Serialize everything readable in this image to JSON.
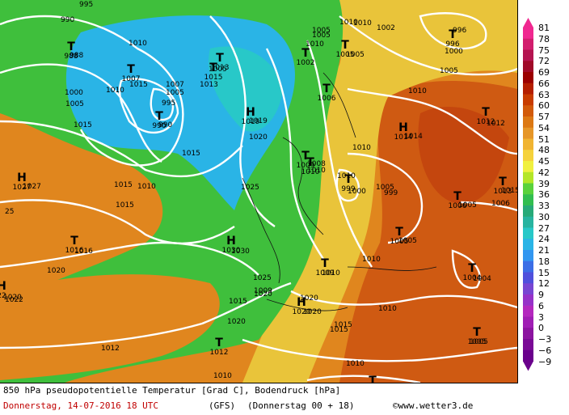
{
  "legend": {
    "ticks": [
      "81",
      "78",
      "75",
      "72",
      "69",
      "66",
      "63",
      "60",
      "57",
      "54",
      "51",
      "48",
      "45",
      "42",
      "39",
      "36",
      "33",
      "30",
      "27",
      "24",
      "21",
      "18",
      "15",
      "12",
      "9",
      "6",
      "3",
      "0",
      "−3",
      "−6",
      "−9"
    ],
    "colors": [
      "#f02890",
      "#d21e6e",
      "#b41450",
      "#a00a28",
      "#9b0000",
      "#b41e00",
      "#c83c00",
      "#d25a0a",
      "#dc7814",
      "#e69628",
      "#f0b432",
      "#f5d23c",
      "#f0f040",
      "#b4e628",
      "#5ad23c",
      "#32be50",
      "#28aa78",
      "#28b4a0",
      "#28c8c8",
      "#2ab4e6",
      "#3296f0",
      "#3c6ee6",
      "#5050dc",
      "#7846d2",
      "#9632c8",
      "#b428be",
      "#a01eb4",
      "#8c14a0",
      "#7a0a96",
      "#6a008c"
    ]
  },
  "map": {
    "isobar_labels": [
      "995",
      "990",
      "988",
      "1000",
      "1005",
      "1010",
      "1015",
      "1007",
      "1005",
      "995",
      "990",
      "1015",
      "1013",
      "1005",
      "1015",
      "1010",
      "1019",
      "1020",
      "1010",
      "1005",
      "1010",
      "1002",
      "1005",
      "1010",
      "1005",
      "996",
      "1000",
      "1005",
      "1010",
      "1012",
      "1015",
      "1014",
      "1010",
      "1008",
      "1010",
      "1000",
      "1005",
      "999",
      "1005",
      "1006",
      "1010",
      "1015",
      "1027",
      "1015",
      "1025",
      "1016",
      "1030",
      "1020",
      "1025",
      "1009",
      "1010",
      "1005",
      "1010",
      "1004",
      "1020",
      "1020",
      "1015",
      "1020",
      "1012",
      "1015",
      "1010",
      "1020",
      "1010",
      "1005",
      "1010",
      "1015",
      "1020",
      "1022",
      "25",
      "1010"
    ],
    "centers": [
      {
        "letter": "T",
        "value": "988"
      },
      {
        "letter": "T",
        "value": "1007"
      },
      {
        "letter": "T",
        "value": "1015"
      },
      {
        "letter": "T",
        "value": "1013"
      },
      {
        "letter": "T",
        "value": "990"
      },
      {
        "letter": "H",
        "value": "1019"
      },
      {
        "letter": "T",
        "value": "1002"
      },
      {
        "letter": "T",
        "value": "1005"
      },
      {
        "letter": "T",
        "value": "996"
      },
      {
        "letter": "T",
        "value": "1006"
      },
      {
        "letter": "T",
        "value": "1012"
      },
      {
        "letter": "H",
        "value": "1014"
      },
      {
        "letter": "T",
        "value": "1009"
      },
      {
        "letter": "T",
        "value": "1010"
      },
      {
        "letter": "T",
        "value": "999"
      },
      {
        "letter": "T",
        "value": "1006"
      },
      {
        "letter": "T",
        "value": "1013"
      },
      {
        "letter": "H",
        "value": "1027"
      },
      {
        "letter": "T",
        "value": "1016"
      },
      {
        "letter": "H",
        "value": "1030"
      },
      {
        "letter": "T",
        "value": "1005"
      },
      {
        "letter": "T",
        "value": "1009"
      },
      {
        "letter": "T",
        "value": "1004"
      },
      {
        "letter": "H",
        "value": "1020"
      },
      {
        "letter": "T",
        "value": "1012"
      },
      {
        "letter": "T",
        "value": "1005"
      },
      {
        "letter": "T",
        "value": "1010"
      },
      {
        "letter": "H",
        "value": "22"
      }
    ]
  },
  "footer": {
    "title": "850 hPa pseudopotentielle Temperatur [Grad C], Bodendruck [hPa]",
    "date": "Donnerstag, 14-07-2016  18 UTC",
    "model": "(GFS)",
    "run": "(Donnerstag 00 + 18)",
    "copyright": "©www.wetter3.de"
  }
}
